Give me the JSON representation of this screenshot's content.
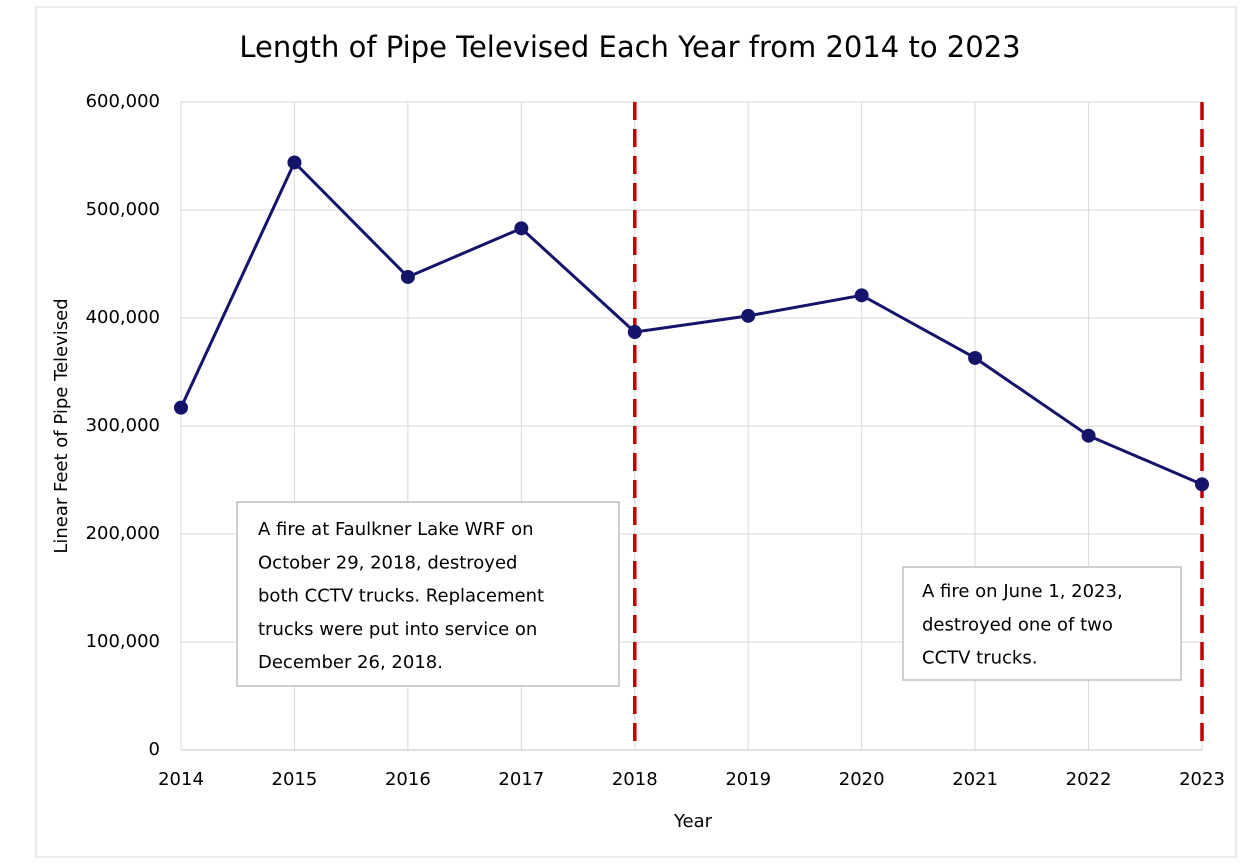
{
  "chart_data": {
    "type": "line",
    "title": "Length of Pipe Televised Each Year from 2014 to 2023",
    "x_label": "Year",
    "y_label": "Linear Feet of Pipe Televised",
    "x": [
      2014,
      2015,
      2016,
      2017,
      2018,
      2019,
      2020,
      2021,
      2022,
      2023
    ],
    "series": [
      {
        "name": "Linear Feet of Pipe Televised",
        "color": "#14146b",
        "values": [
          317000,
          544000,
          438000,
          483000,
          387000,
          402000,
          421000,
          363000,
          291000,
          246000
        ]
      }
    ],
    "xlim": [
      2014,
      2023
    ],
    "xticks": [
      2014,
      2015,
      2016,
      2017,
      2018,
      2019,
      2020,
      2021,
      2022,
      2023
    ],
    "ylim": [
      0,
      600000
    ],
    "yticks": [
      0,
      {
        "value": 100000,
        "label": "100,000"
      },
      {
        "value": 200000,
        "label": "200,000"
      },
      {
        "value": 300000,
        "label": "300,000"
      },
      {
        "value": 400000,
        "label": "400,000"
      },
      {
        "value": 500000,
        "label": "500,000"
      },
      {
        "value": 600000,
        "label": "600,000"
      }
    ],
    "grid": true,
    "vlines": {
      "color": "#c00000",
      "x": [
        2018,
        2023
      ]
    },
    "annotations": [
      {
        "lines": [
          "A fire at Faulkner Lake WRF on",
          "October 29, 2018, destroyed",
          "both CCTV trucks. Replacement",
          "trucks were put into service on",
          "December 26, 2018."
        ]
      },
      {
        "lines": [
          "A fire on June 1, 2023,",
          "destroyed one of two",
          "CCTV trucks."
        ]
      }
    ]
  }
}
